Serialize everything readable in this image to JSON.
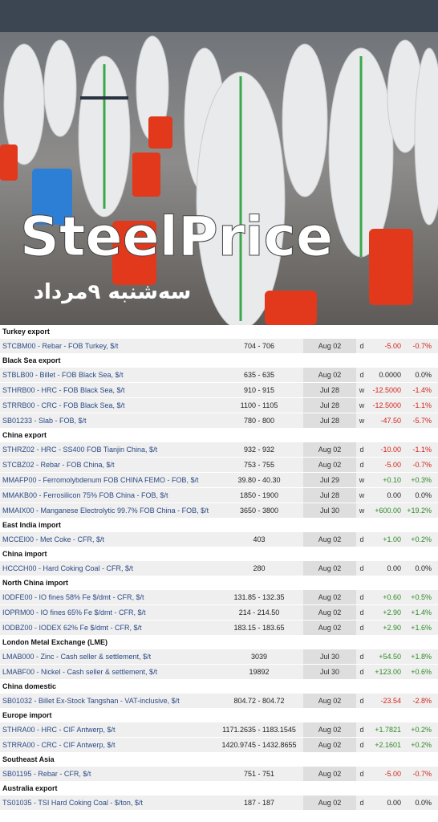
{
  "banner": {
    "title": "SteelPrice",
    "subtitle": "سه‌شنبه ۹مرداد"
  },
  "sections": [
    {
      "title": "Turkey export",
      "rows": [
        [
          "STCBM00 - Rebar - FOB Turkey, $/t",
          "704 - 706",
          "Aug 02",
          "d",
          "-5.00",
          "-0.7%"
        ]
      ]
    },
    {
      "title": "Black Sea export",
      "rows": [
        [
          "STBLB00 - Billet - FOB Black Sea, $/t",
          "635 - 635",
          "Aug 02",
          "d",
          "0.0000",
          "0.0%"
        ],
        [
          "STHRB00 - HRC - FOB Black Sea, $/t",
          "910 - 915",
          "Jul 28",
          "w",
          "-12.5000",
          "-1.4%"
        ],
        [
          "STRRB00 - CRC - FOB Black Sea, $/t",
          "1100 - 1105",
          "Jul 28",
          "w",
          "-12.5000",
          "-1.1%"
        ],
        [
          "SB01233 - Slab - FOB, $/t",
          "780 - 800",
          "Jul 28",
          "w",
          "-47.50",
          "-5.7%"
        ]
      ]
    },
    {
      "title": "China export",
      "rows": [
        [
          "STHRZ02 - HRC - SS400 FOB Tianjin China, $/t",
          "932 - 932",
          "Aug 02",
          "d",
          "-10.00",
          "-1.1%"
        ],
        [
          "STCBZ02 - Rebar - FOB China, $/t",
          "753 - 755",
          "Aug 02",
          "d",
          "-5.00",
          "-0.7%"
        ],
        [
          "MMAFP00 - Ferromolybdenum FOB CHINA FEMO - FOB, $/t",
          "39.80 - 40.30",
          "Jul 29",
          "w",
          "+0.10",
          "+0.3%"
        ],
        [
          "MMAKB00 - Ferrosilicon 75% FOB China - FOB, $/t",
          "1850 - 1900",
          "Jul 28",
          "w",
          "0.00",
          "0.0%"
        ],
        [
          "MMAIX00 - Manganese Electrolytic 99.7% FOB China - FOB, $/t",
          "3650 - 3800",
          "Jul 30",
          "w",
          "+600.00",
          "+19.2%"
        ]
      ]
    },
    {
      "title": "East India import",
      "rows": [
        [
          "MCCEI00 - Met Coke - CFR, $/t",
          "403",
          "Aug 02",
          "d",
          "+1.00",
          "+0.2%"
        ]
      ]
    },
    {
      "title": "China import",
      "rows": [
        [
          "HCCCH00 - Hard Coking Coal - CFR, $/t",
          "280",
          "Aug 02",
          "d",
          "0.00",
          "0.0%"
        ]
      ]
    },
    {
      "title": "North China import",
      "rows": [
        [
          "IODFE00 - IO fines 58% Fe $/dmt - CFR, $/t",
          "131.85 - 132.35",
          "Aug 02",
          "d",
          "+0.60",
          "+0.5%"
        ],
        [
          "IOPRM00 - IO fines 65% Fe $/dmt - CFR, $/t",
          "214 - 214.50",
          "Aug 02",
          "d",
          "+2.90",
          "+1.4%"
        ],
        [
          "IODBZ00 - IODEX 62% Fe $/dmt - CFR, $/t",
          "183.15 - 183.65",
          "Aug 02",
          "d",
          "+2.90",
          "+1.6%"
        ]
      ]
    },
    {
      "title": "London Metal Exchange (LME)",
      "rows": [
        [
          "LMAB000 - Zinc - Cash seller & settlement, $/t",
          "3039",
          "Jul 30",
          "d",
          "+54.50",
          "+1.8%"
        ],
        [
          "LMABF00 - Nickel - Cash seller & settlement, $/t",
          "19892",
          "Jul 30",
          "d",
          "+123.00",
          "+0.6%"
        ]
      ]
    },
    {
      "title": "China domestic",
      "rows": [
        [
          "SB01032 - Billet Ex-Stock Tangshan - VAT-inclusive, $/t",
          "804.72 - 804.72",
          "Aug 02",
          "d",
          "-23.54",
          "-2.8%"
        ]
      ]
    },
    {
      "title": "Europe import",
      "rows": [
        [
          "STHRA00 - HRC - CIF Antwerp, $/t",
          "1171.2635 - 1183.1545",
          "Aug 02",
          "d",
          "+1.7821",
          "+0.2%"
        ],
        [
          "STRRA00 - CRC - CIF Antwerp, $/t",
          "1420.9745 - 1432.8655",
          "Aug 02",
          "d",
          "+2.1601",
          "+0.2%"
        ]
      ]
    },
    {
      "title": "Southeast Asia",
      "rows": [
        [
          "SB01195 - Rebar - CFR, $/t",
          "751 - 751",
          "Aug 02",
          "d",
          "-5.00",
          "-0.7%"
        ]
      ]
    },
    {
      "title": "Australia export",
      "rows": [
        [
          "TS01035 - TSI Hard Coking Coal - $/ton, $/t",
          "187 - 187",
          "Aug 02",
          "d",
          "0.00",
          "0.0%"
        ]
      ]
    }
  ]
}
